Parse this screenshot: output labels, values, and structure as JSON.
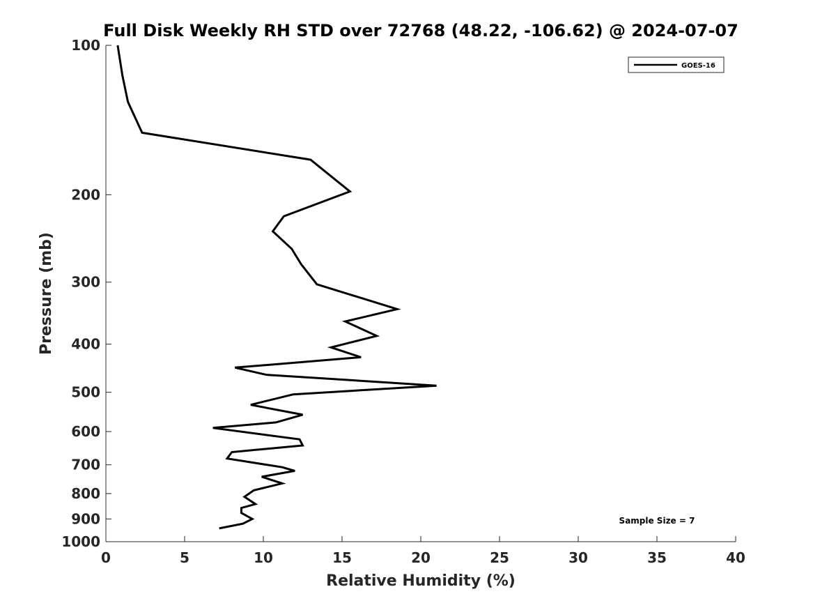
{
  "chart_data": {
    "type": "line",
    "title": "Full Disk Weekly RH STD over 72768 (48.22, -106.62) @ 2024-07-07",
    "xlabel": "Relative Humidity (%)",
    "ylabel": "Pressure (mb)",
    "xlim": [
      0,
      40
    ],
    "ylim": [
      100,
      1000
    ],
    "yscale": "log",
    "xticks": [
      0,
      5,
      10,
      15,
      20,
      25,
      30,
      35,
      40
    ],
    "yticks": [
      100,
      200,
      300,
      400,
      500,
      600,
      700,
      800,
      900,
      1000
    ],
    "grid": false,
    "legend_position": "top-right",
    "annotation": "Sample Size = 7",
    "series": [
      {
        "name": "GOES-16",
        "color": "#000000",
        "x": [
          0.75,
          1.05,
          1.4,
          2.3,
          13.0,
          15.5,
          11.3,
          10.6,
          11.8,
          12.4,
          13.4,
          18.5,
          15.2,
          17.2,
          14.3,
          16.2,
          8.2,
          10.2,
          21.0,
          11.9,
          9.2,
          12.5,
          10.8,
          6.8,
          12.3,
          12.5,
          8.0,
          7.7,
          11.2,
          12.0,
          9.9,
          11.2,
          9.4,
          8.8,
          9.5,
          8.6,
          8.6,
          9.3,
          8.7,
          7.2
        ],
        "y": [
          100,
          115,
          130,
          150,
          170,
          197,
          221,
          237,
          257,
          276,
          303,
          340,
          360,
          385,
          406,
          425,
          446,
          461,
          485,
          505,
          530,
          555,
          575,
          590,
          622,
          640,
          660,
          680,
          708,
          720,
          740,
          763,
          788,
          812,
          840,
          855,
          875,
          900,
          920,
          940
        ]
      }
    ]
  }
}
